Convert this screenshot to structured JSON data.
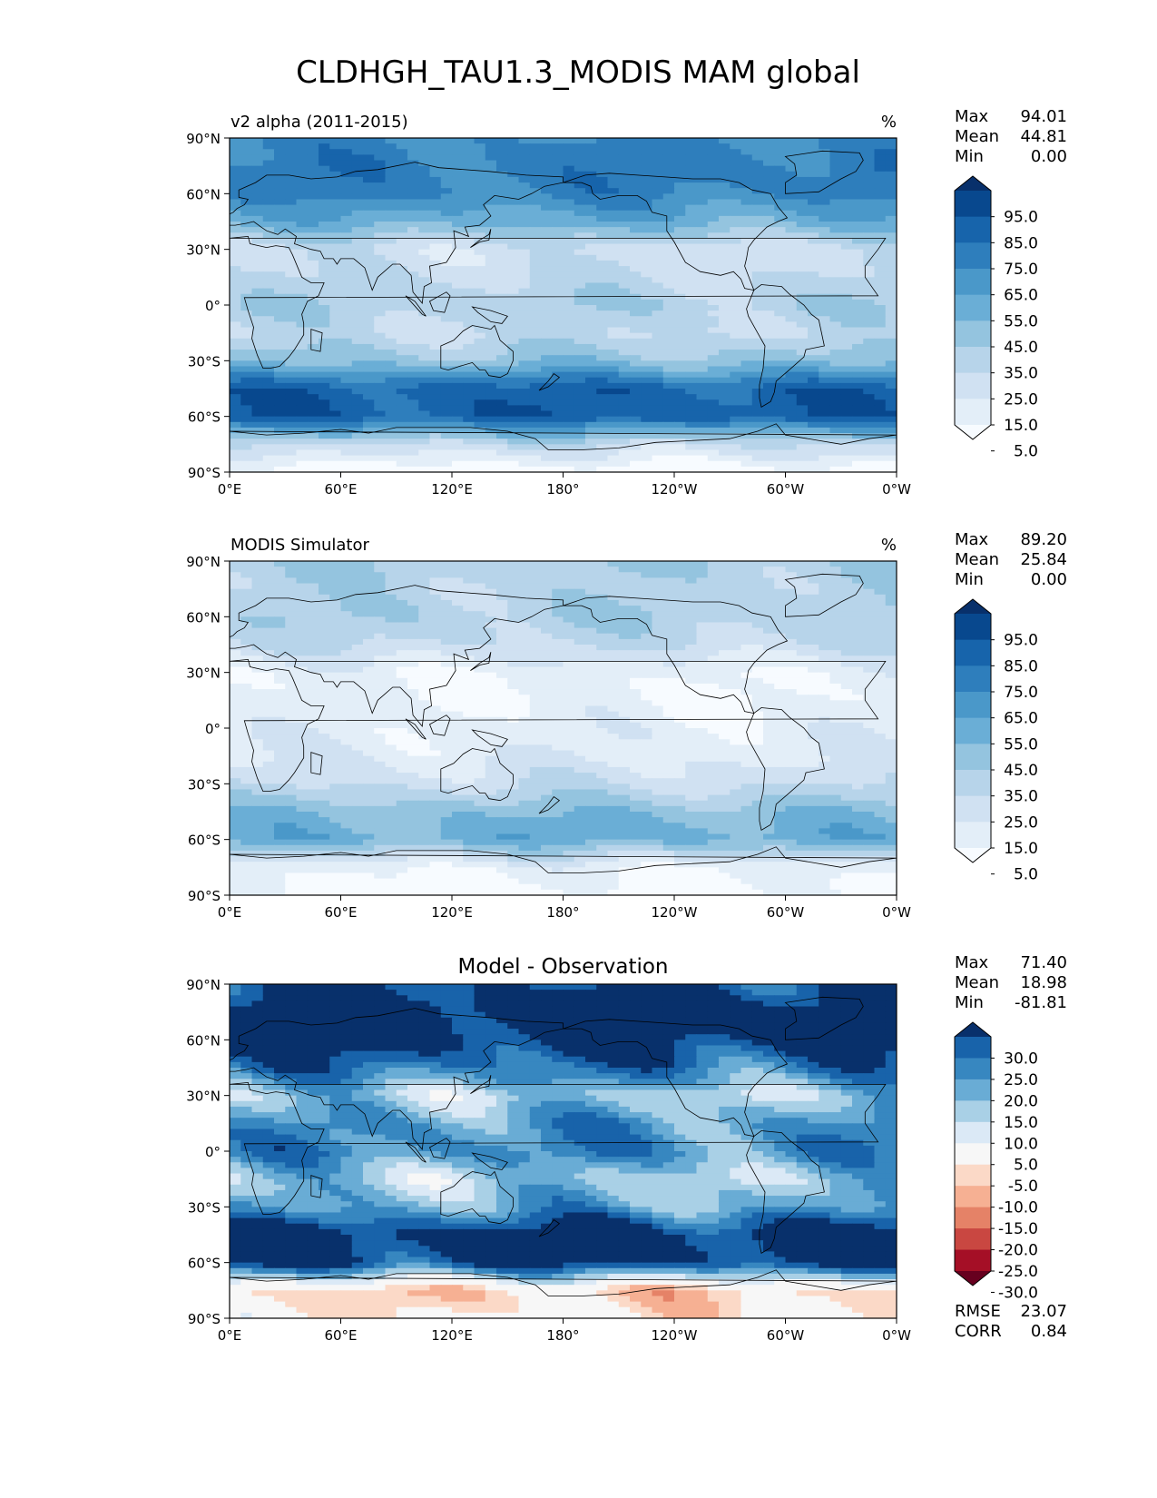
{
  "figure": {
    "title": "CLDHGH_TAU1.3_MODIS MAM global"
  },
  "colors": {
    "blues": [
      "#f7fbff",
      "#e3eef8",
      "#d0e1f2",
      "#b7d4ea",
      "#94c4df",
      "#6aaed6",
      "#4a98c9",
      "#2e7ebc",
      "#1764ab",
      "#08488e",
      "#08306b"
    ],
    "diff": [
      "#67001f",
      "#a50f26",
      "#c94741",
      "#e58267",
      "#f6b093",
      "#fbd9c7",
      "#f7f7f7",
      "#dbe9f6",
      "#a9d0e6",
      "#69acd5",
      "#3787c0",
      "#1863aa",
      "#08306b"
    ]
  },
  "chart_data": [
    {
      "type": "heatmap",
      "panel": "test",
      "title_left": "v2 alpha (2011-2015)",
      "title_center": "",
      "units": "%",
      "xlim": [
        0,
        360
      ],
      "ylim": [
        -90,
        90
      ],
      "x_ticks": [
        "0°E",
        "60°E",
        "120°E",
        "180°",
        "120°W",
        "60°W",
        "0°W"
      ],
      "y_ticks": [
        "90°N",
        "60°N",
        "30°N",
        "0°",
        "30°S",
        "60°S",
        "90°S"
      ],
      "stats": [
        {
          "label": "Max",
          "value": "94.01"
        },
        {
          "label": "Mean",
          "value": "44.81"
        },
        {
          "label": "Min",
          "value": "0.00"
        }
      ],
      "colorbar_levels": [
        "95.0",
        "85.0",
        "75.0",
        "65.0",
        "55.0",
        "45.0",
        "35.0",
        "25.0",
        "15.0",
        "5.0"
      ],
      "palette": "blues",
      "field": {
        "lat": [
          -90,
          -75,
          -60,
          -45,
          -30,
          -15,
          0,
          15,
          30,
          45,
          60,
          75,
          90
        ],
        "values": [
          2,
          30,
          88,
          85,
          45,
          30,
          38,
          30,
          25,
          55,
          72,
          75,
          70
        ]
      }
    },
    {
      "type": "heatmap",
      "panel": "reference",
      "title_left": "MODIS Simulator",
      "title_center": "",
      "units": "%",
      "xlim": [
        0,
        360
      ],
      "ylim": [
        -90,
        90
      ],
      "x_ticks": [
        "0°E",
        "60°E",
        "120°E",
        "180°",
        "120°W",
        "60°W",
        "0°W"
      ],
      "y_ticks": [
        "90°N",
        "60°N",
        "30°N",
        "0°",
        "30°S",
        "60°S",
        "90°S"
      ],
      "stats": [
        {
          "label": "Max",
          "value": "89.20"
        },
        {
          "label": "Mean",
          "value": "25.84"
        },
        {
          "label": "Min",
          "value": "0.00"
        }
      ],
      "colorbar_levels": [
        "95.0",
        "85.0",
        "75.0",
        "65.0",
        "55.0",
        "45.0",
        "35.0",
        "25.0",
        "15.0",
        "5.0"
      ],
      "palette": "blues",
      "field": {
        "lat": [
          -90,
          -75,
          -60,
          -45,
          -30,
          -15,
          0,
          15,
          30,
          45,
          60,
          75,
          90
        ],
        "values": [
          5,
          12,
          55,
          48,
          28,
          18,
          15,
          10,
          12,
          30,
          38,
          35,
          40
        ]
      }
    },
    {
      "type": "heatmap",
      "panel": "difference",
      "title_left": "",
      "title_center": "Model - Observation",
      "units": "",
      "xlim": [
        0,
        360
      ],
      "ylim": [
        -90,
        90
      ],
      "x_ticks": [
        "0°E",
        "60°E",
        "120°E",
        "180°",
        "120°W",
        "60°W",
        "0°W"
      ],
      "y_ticks": [
        "90°N",
        "60°N",
        "30°N",
        "0°",
        "30°S",
        "60°S",
        "90°S"
      ],
      "stats": [
        {
          "label": "Max",
          "value": "71.40"
        },
        {
          "label": "Mean",
          "value": "18.98"
        },
        {
          "label": "Min",
          "value": "-81.81"
        }
      ],
      "colorbar_levels": [
        "30.0",
        "25.0",
        "20.0",
        "15.0",
        "10.0",
        "5.0",
        "-5.0",
        "-10.0",
        "-15.0",
        "-20.0",
        "-25.0",
        "-30.0"
      ],
      "palette": "diff",
      "extra_stats": [
        {
          "label": "RMSE",
          "value": "23.07"
        },
        {
          "label": "CORR",
          "value": "0.84"
        }
      ],
      "field": {
        "lat": [
          -90,
          -75,
          -60,
          -45,
          -30,
          -15,
          0,
          15,
          30,
          45,
          60,
          75,
          90
        ],
        "values": [
          -3,
          -8,
          32,
          35,
          18,
          12,
          22,
          20,
          12,
          25,
          34,
          38,
          30
        ]
      }
    }
  ]
}
